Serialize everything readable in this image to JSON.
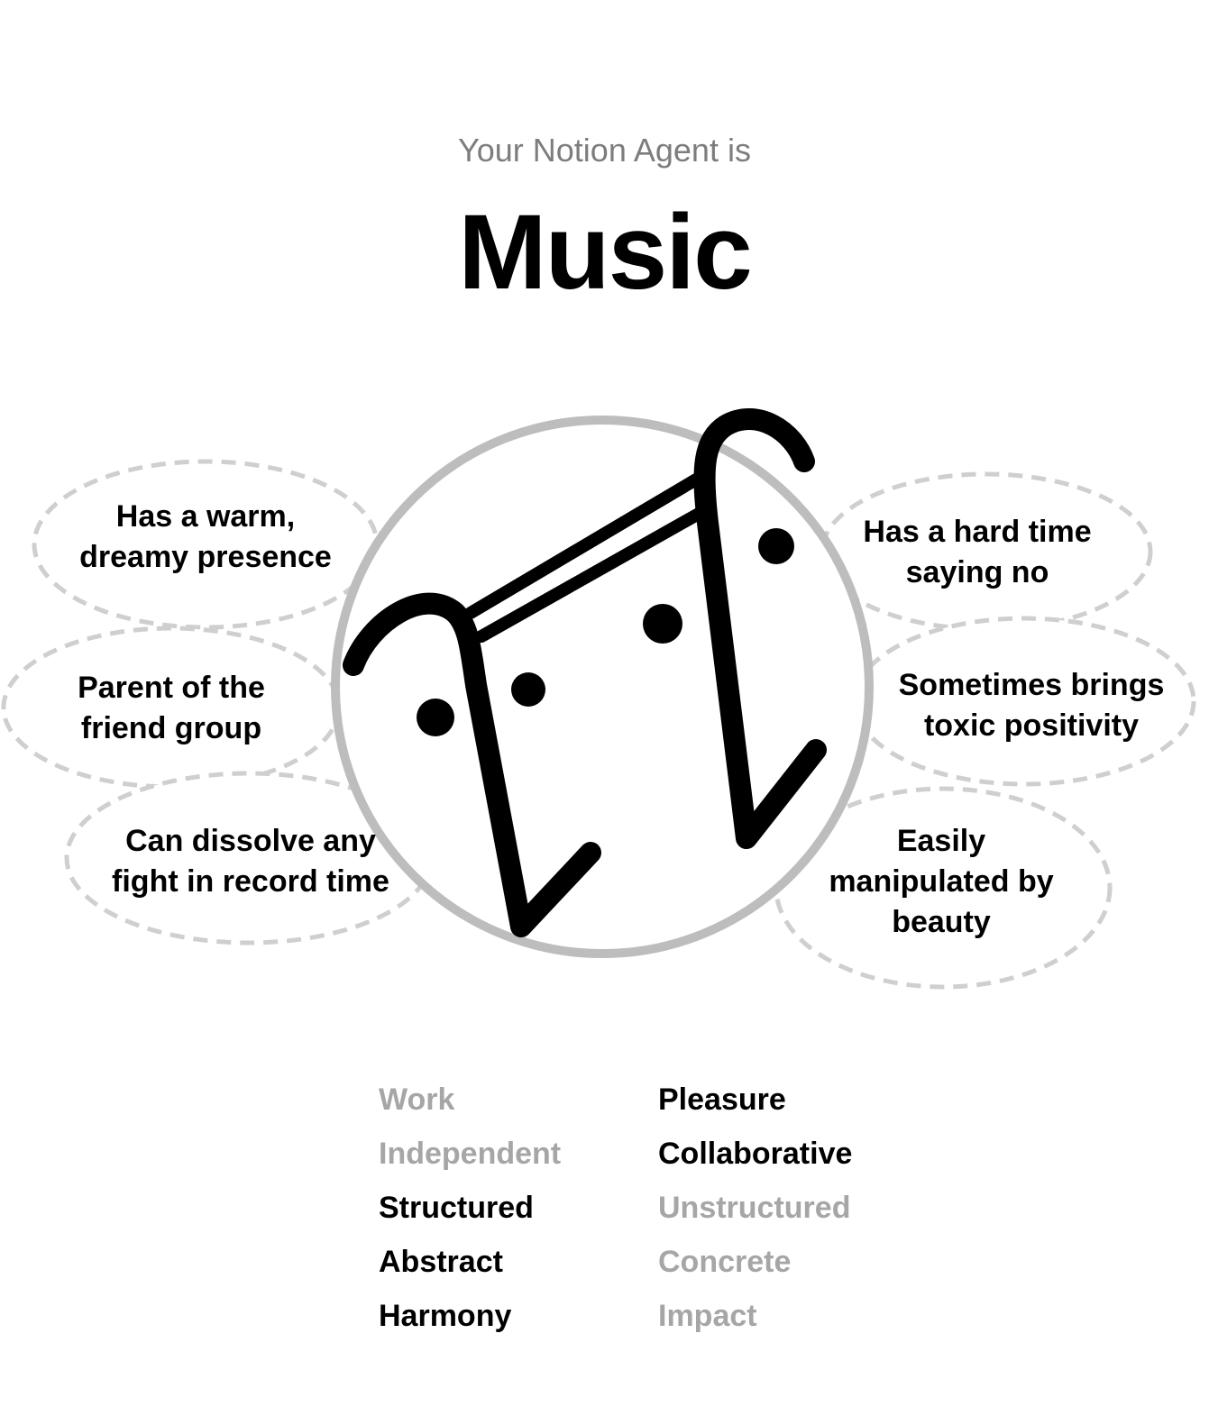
{
  "header": {
    "subtitle": "Your Notion Agent is",
    "title": "Music"
  },
  "avatar": {
    "icon": "music-note-face-icon",
    "ring_color": "#bdbdbd",
    "ink_color": "#000000"
  },
  "traits_left": [
    "Has a warm,\ndreamy presence",
    "Parent of the\nfriend group",
    "Can dissolve any\nfight in record time"
  ],
  "traits_right": [
    "Has a hard time\nsaying no",
    "Sometimes brings\ntoxic positivity",
    "Easily\nmanipulated by\nbeauty"
  ],
  "spectrum": [
    {
      "left": "Work",
      "right": "Pleasure",
      "selected": "right"
    },
    {
      "left": "Independent",
      "right": "Collaborative",
      "selected": "right"
    },
    {
      "left": "Structured",
      "right": "Unstructured",
      "selected": "left"
    },
    {
      "left": "Abstract",
      "right": "Concrete",
      "selected": "left"
    },
    {
      "left": "Harmony",
      "right": "Impact",
      "selected": "left"
    }
  ],
  "colors": {
    "bubble_border": "#cfcfcf",
    "muted_text": "#a6a6a6",
    "subtitle_text": "#7d7d7d"
  }
}
